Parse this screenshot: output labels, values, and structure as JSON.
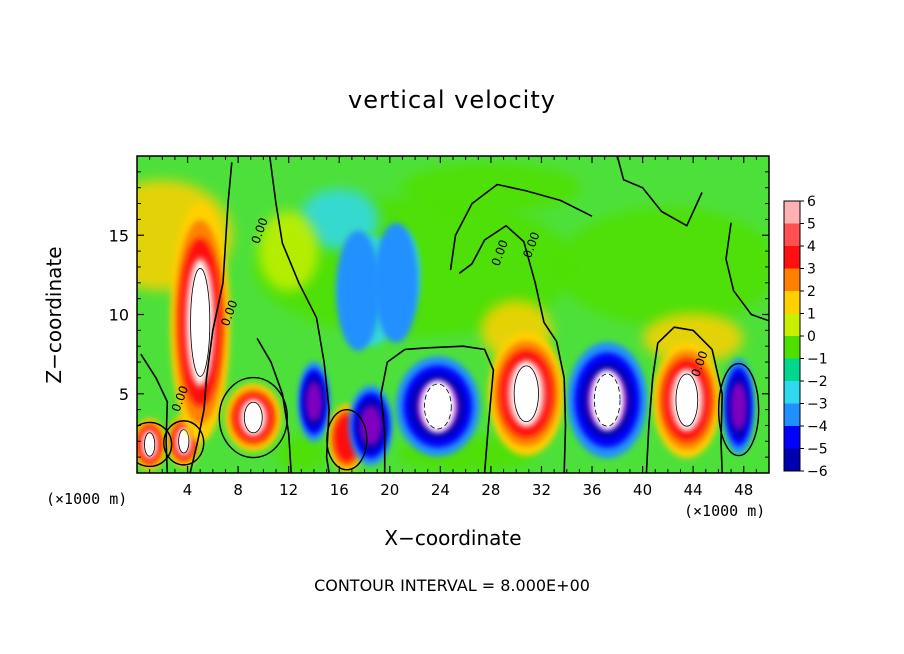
{
  "chart_data": {
    "type": "heatmap",
    "title": "vertical velocity",
    "xlabel": "X−coordinate",
    "ylabel": "Z−coordinate",
    "x_unit_left": "(×1000 m)",
    "x_unit_right": "(×1000 m)",
    "xlim": [
      0,
      50
    ],
    "ylim": [
      0,
      20
    ],
    "x_ticks": [
      4,
      8,
      12,
      16,
      20,
      24,
      28,
      32,
      36,
      40,
      44,
      48
    ],
    "x_tick_labels": [
      "4",
      "8",
      "12",
      "16",
      "20",
      "24",
      "28",
      "32",
      "36",
      "40",
      "44",
      "48"
    ],
    "y_ticks": [
      5,
      10,
      15
    ],
    "y_tick_labels": [
      "5",
      "10",
      "15"
    ],
    "colorbar": {
      "levels": [
        6,
        5,
        4,
        3,
        2,
        1,
        0,
        -1,
        -2,
        -3,
        -4,
        -5,
        -6
      ],
      "labels": [
        "6",
        "5",
        "4",
        "3",
        "2",
        "1",
        "0",
        "−1",
        "−2",
        "−3",
        "−4",
        "−5",
        "−6"
      ],
      "colors": [
        "#ffb0b0",
        "#ff5050",
        "#ff1010",
        "#ff8000",
        "#ffd000",
        "#c8f000",
        "#50e000",
        "#00d890",
        "#30d8f0",
        "#2090ff",
        "#0000ff",
        "#0000b0",
        "#8000c0"
      ]
    },
    "contour_labels": [
      {
        "x": 10.0,
        "z": 15.2,
        "text": "0.00"
      },
      {
        "x": 7.6,
        "z": 10.0,
        "text": "0.00"
      },
      {
        "x": 3.7,
        "z": 4.6,
        "text": "0.00"
      },
      {
        "x": 29.0,
        "z": 13.8,
        "text": "0.00"
      },
      {
        "x": 31.5,
        "z": 14.3,
        "text": "0.00"
      },
      {
        "x": 44.8,
        "z": 6.8,
        "text": "0.00"
      }
    ],
    "cells": [
      {
        "x": 1.0,
        "z": 1.8,
        "w": 6
      },
      {
        "x": 3.7,
        "z": 2.0,
        "w": 6
      },
      {
        "x": 5.0,
        "z": 9.5,
        "w": 6
      },
      {
        "x": 9.2,
        "z": 3.5,
        "w": 6
      },
      {
        "x": 14.0,
        "z": 4.5,
        "w": -5
      },
      {
        "x": 16.6,
        "z": 2.2,
        "w": 4
      },
      {
        "x": 18.5,
        "z": 3.0,
        "w": -5
      },
      {
        "x": 23.8,
        "z": 4.2,
        "w": -6
      },
      {
        "x": 30.8,
        "z": 5.0,
        "w": 6
      },
      {
        "x": 37.2,
        "z": 4.6,
        "w": -6
      },
      {
        "x": 43.5,
        "z": 4.6,
        "w": 6
      },
      {
        "x": 47.6,
        "z": 4.2,
        "w": -5
      },
      {
        "x": 17.5,
        "z": 11.5,
        "w": -2
      },
      {
        "x": 20.5,
        "z": 12.0,
        "w": -2
      }
    ]
  },
  "footer": {
    "contour_interval": "CONTOUR INTERVAL = 8.000E+00"
  }
}
